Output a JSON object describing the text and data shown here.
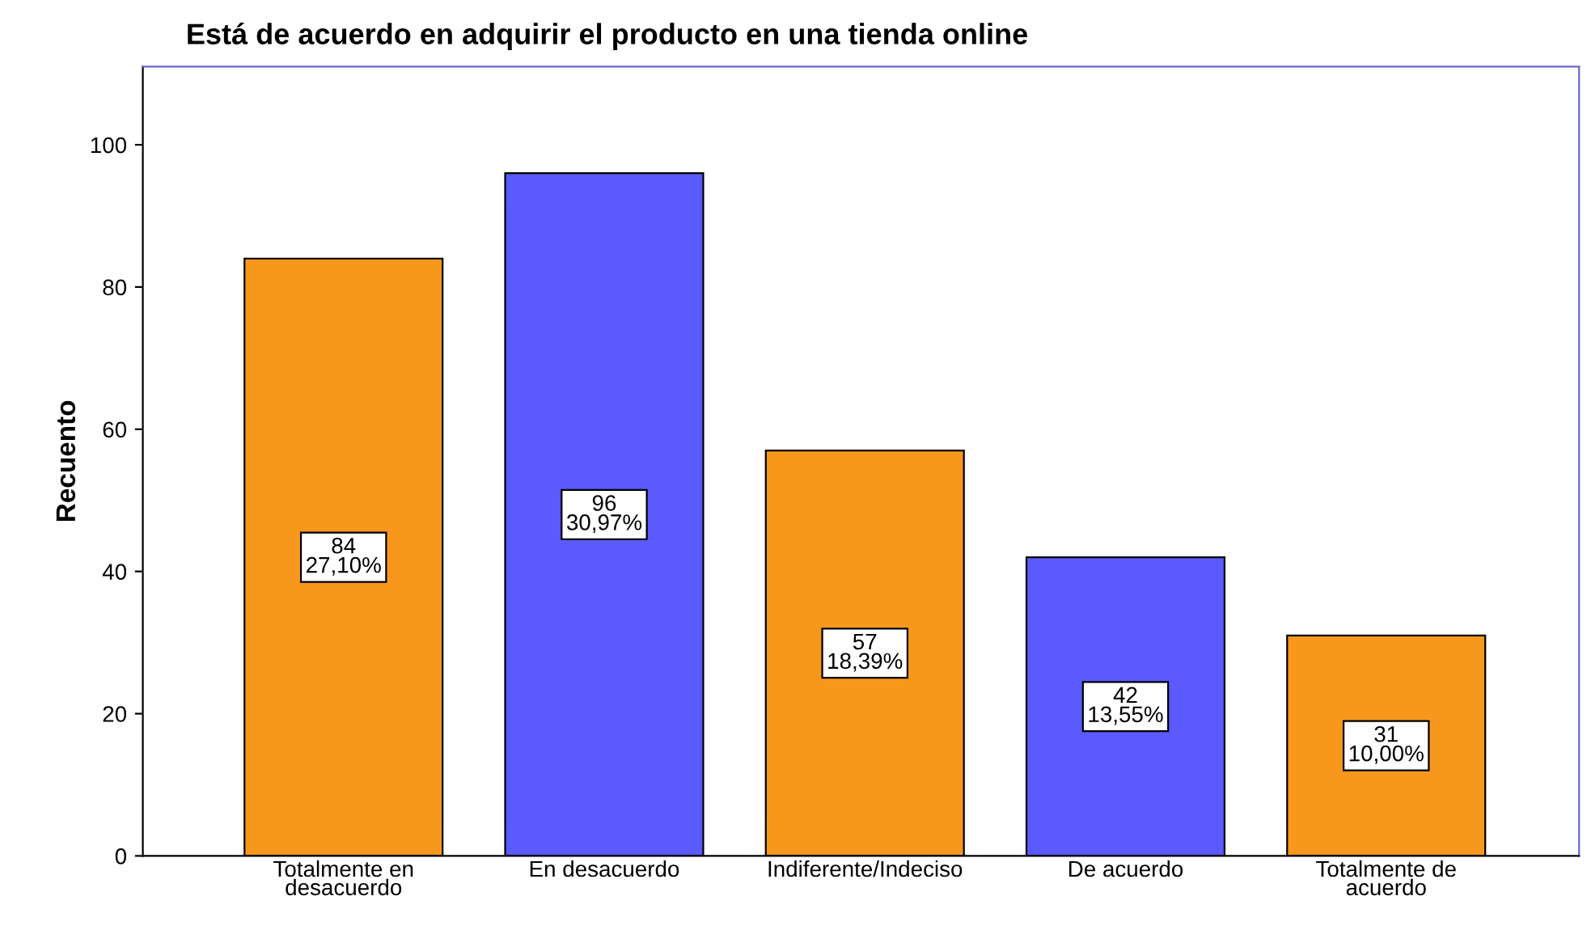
{
  "chart_data": {
    "type": "bar",
    "title": "Está de acuerdo en adquirir el producto en una tienda online",
    "ylabel": "Recuento",
    "categories": [
      "Totalmente en\ndesacuerdo",
      "En desacuerdo",
      "Indiferente/Indeciso",
      "De acuerdo",
      "Totalmente de\nacuerdo"
    ],
    "values": [
      84,
      96,
      57,
      42,
      31
    ],
    "colors": [
      "#f7981d",
      "#5a5aff",
      "#f7981d",
      "#5a5aff",
      "#f7981d"
    ],
    "value_labels": [
      "84\n27,10%",
      "96\n30,97%",
      "57\n18,39%",
      "42\n13,55%",
      "31\n10,00%"
    ],
    "ylim": [
      0,
      111
    ],
    "yticks": [
      0,
      20,
      40,
      60,
      80,
      100
    ],
    "grid": false,
    "legend": false
  }
}
